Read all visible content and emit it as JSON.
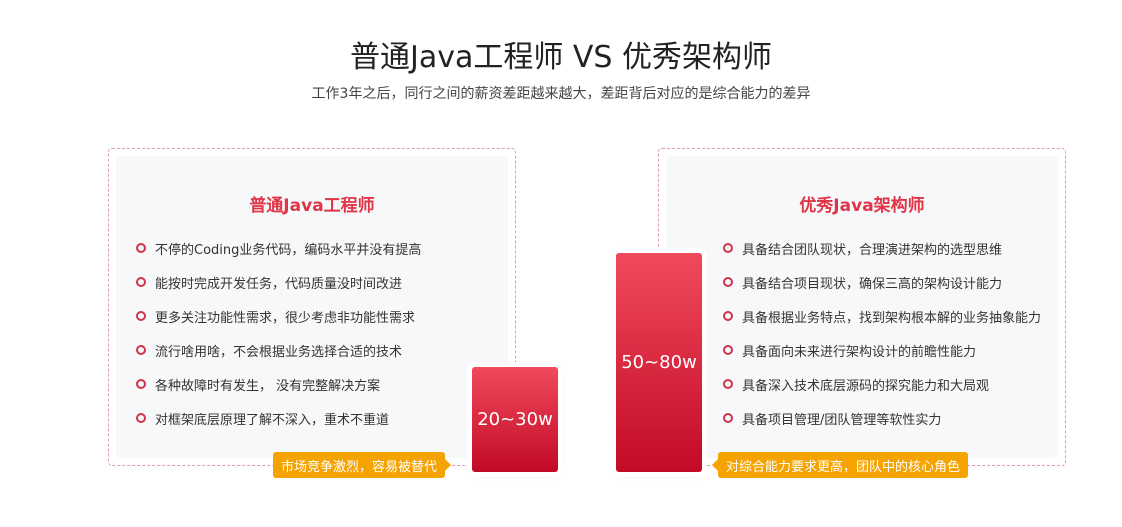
{
  "header": {
    "title": "普通Java工程师 VS 优秀架构师",
    "subtitle": "工作3年之后，同行之间的薪资差距越来越大，差距背后对应的是综合能力的差异"
  },
  "left": {
    "title": "普通Java工程师",
    "items": [
      "不停的Coding业务代码，编码水平并没有提高",
      "能按时完成开发任务，代码质量没时间改进",
      "更多关注功能性需求，很少考虑非功能性需求",
      "流行啥用啥，不会根据业务选择合适的技术",
      "各种故障时有发生， 没有完整解决方案",
      "对框架底层原理了解不深入，重术不重道"
    ],
    "salary": "20~30w",
    "tag": "市场竞争激烈，容易被替代"
  },
  "right": {
    "title": "优秀Java架构师",
    "items": [
      "具备结合团队现状，合理演进架构的选型思维",
      "具备结合项目现状，确保三高的架构设计能力",
      "具备根据业务特点，找到架构根本解的业务抽象能力",
      "具备面向未来进行架构设计的前瞻性能力",
      "具备深入技术底层源码的探究能力和大局观",
      "具备项目管理/团队管理等软性实力"
    ],
    "salary": "50~80w",
    "tag": "对综合能力要求更高，团队中的核心角色"
  },
  "colors": {
    "accent": "#e03447",
    "tag": "#f5a300"
  }
}
